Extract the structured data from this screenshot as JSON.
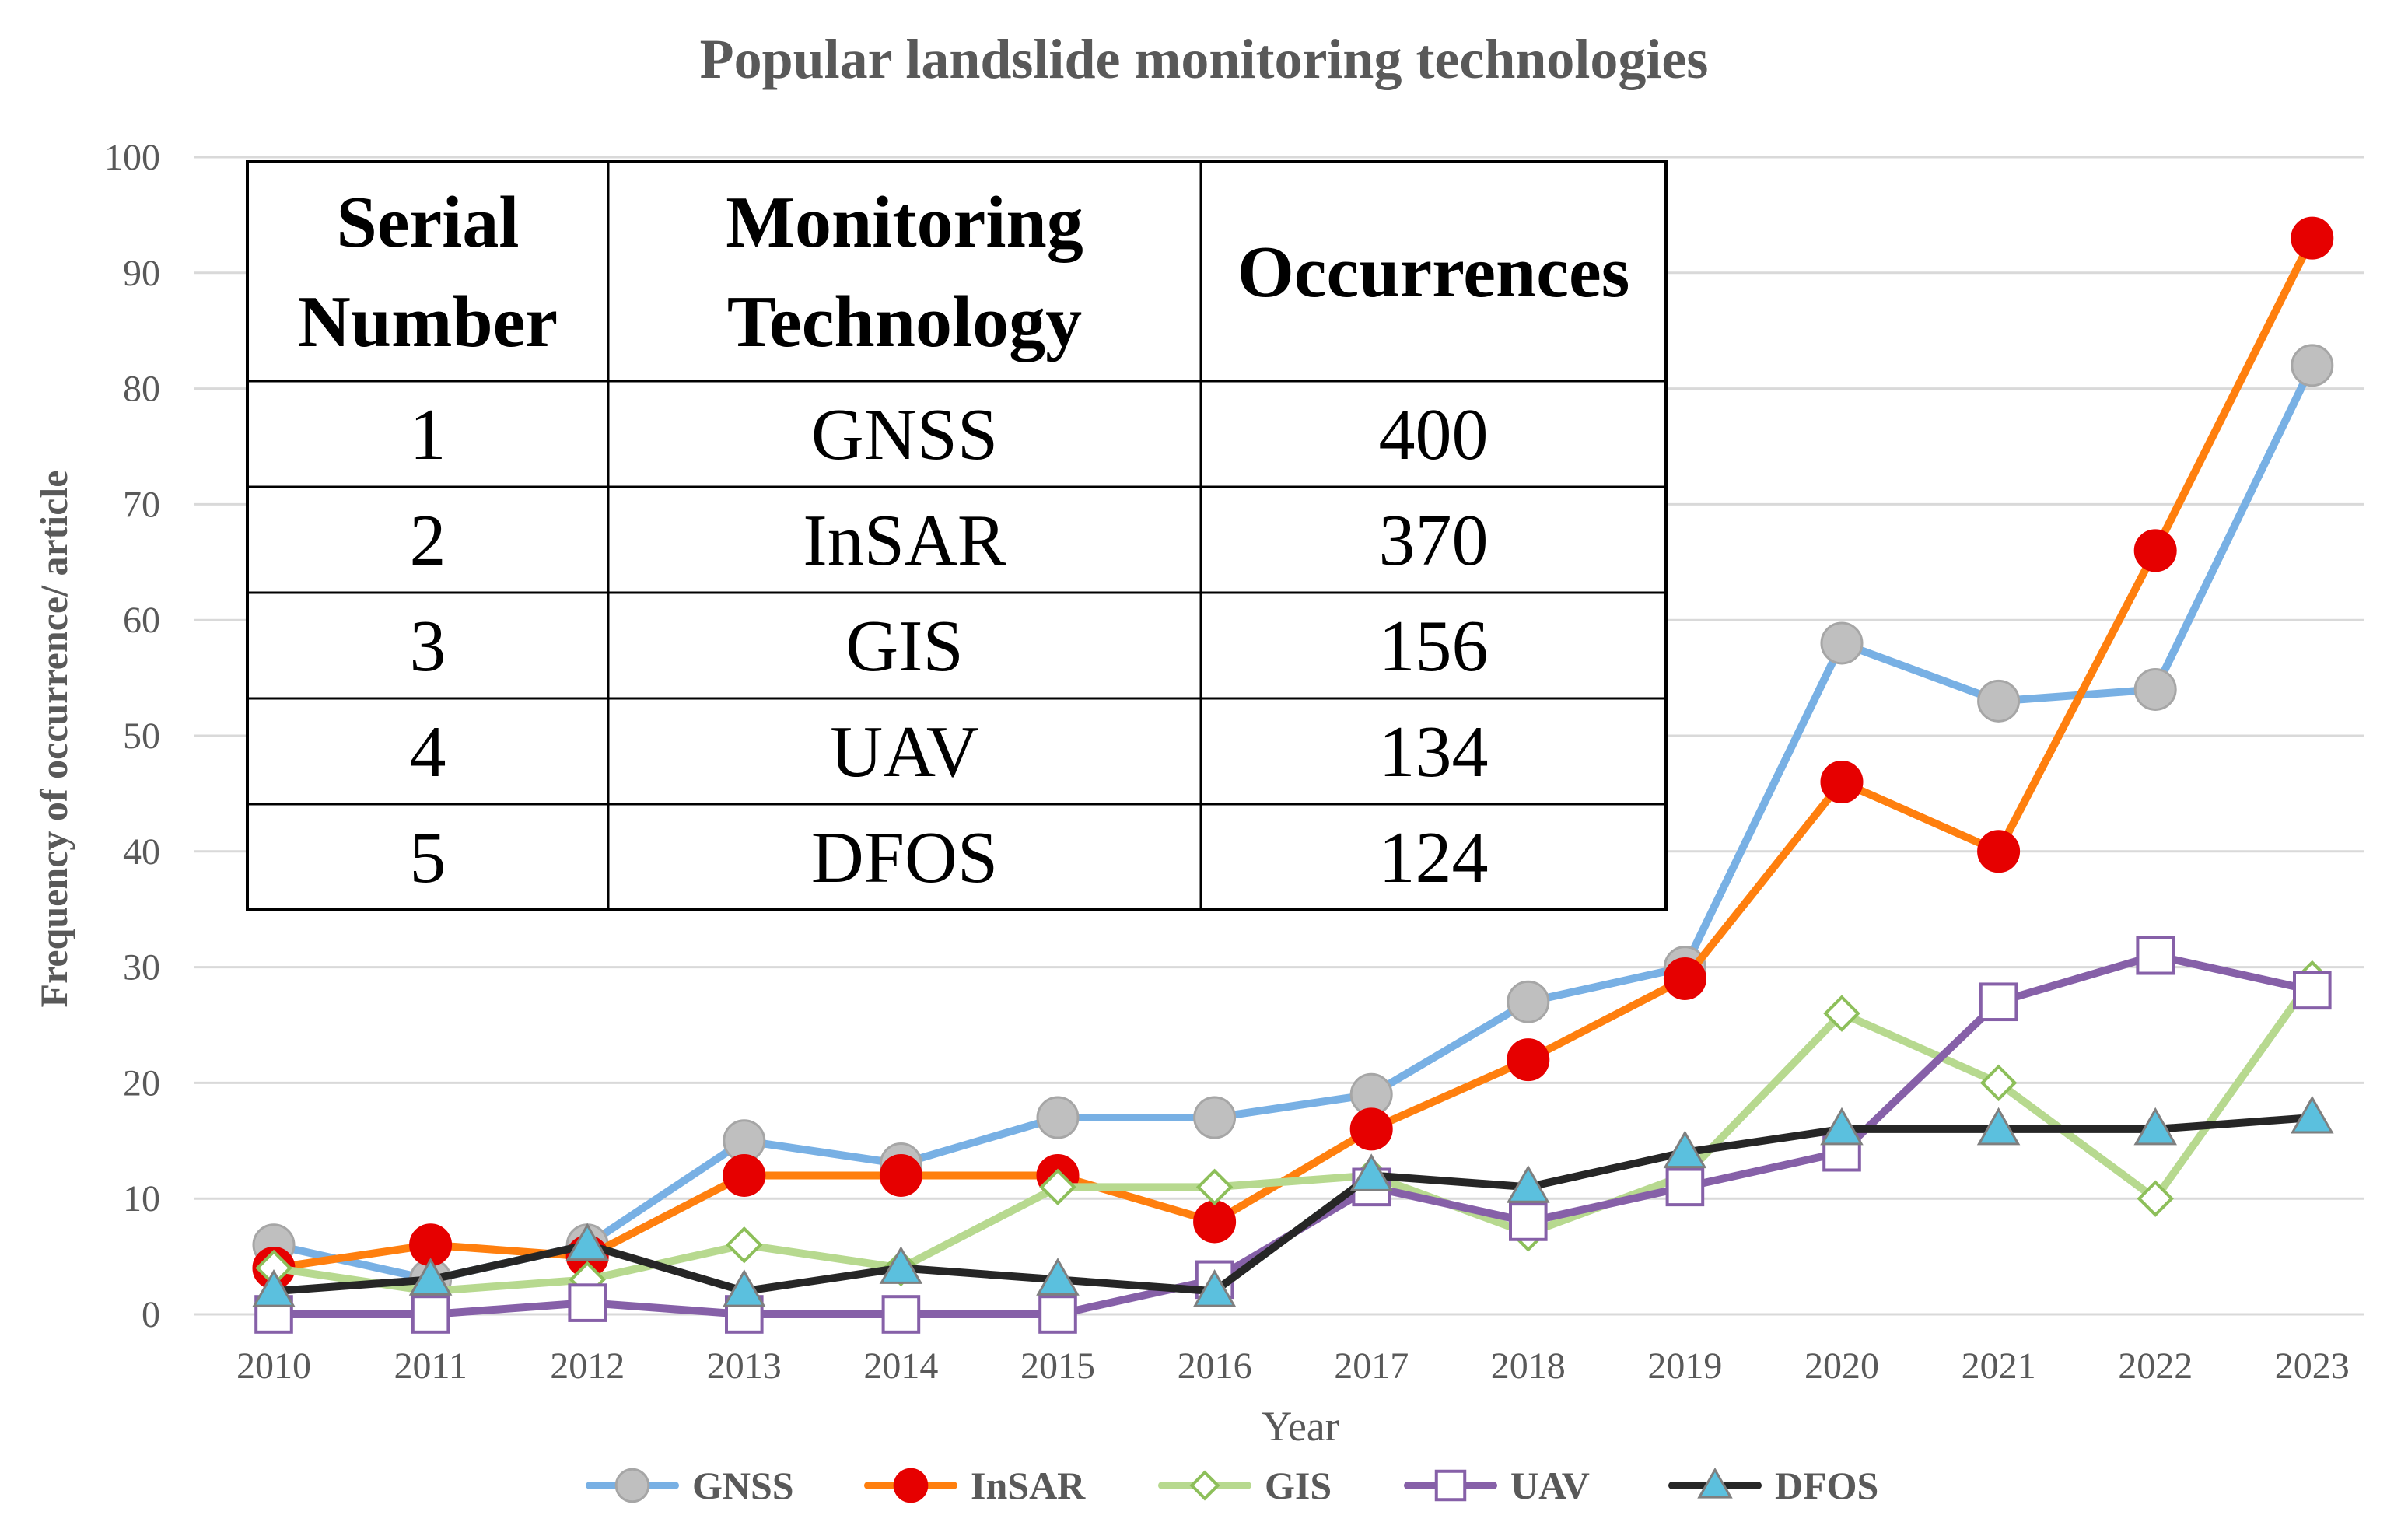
{
  "chart_data": {
    "type": "line",
    "title": "Popular landslide monitoring technologies",
    "xlabel": "Year",
    "ylabel": "Frequency of occurrence/ article",
    "ylim": [
      0,
      100
    ],
    "yticks": [
      "0",
      "10",
      "20",
      "30",
      "40",
      "50",
      "60",
      "70",
      "80",
      "90",
      "100"
    ],
    "x": [
      "2010",
      "2011",
      "2012",
      "2013",
      "2014",
      "2015",
      "2016",
      "2017",
      "2018",
      "2019",
      "2020",
      "2021",
      "2022",
      "2023"
    ],
    "grid": "horizontal",
    "legend": "bottom",
    "series": [
      {
        "name": "GNSS",
        "values": [
          6,
          3,
          6,
          15,
          13,
          17,
          17,
          19,
          27,
          30,
          58,
          53,
          54,
          82
        ],
        "line_color": "#78B0E4",
        "marker": "circle",
        "marker_fill": "#BFBFBF",
        "marker_stroke": "#A6A6A6"
      },
      {
        "name": "InSAR",
        "values": [
          4,
          6,
          5,
          12,
          12,
          12,
          8,
          16,
          22,
          29,
          46,
          40,
          66,
          93
        ],
        "line_color": "#FF7F0E",
        "marker": "circle",
        "marker_fill": "#E60000",
        "marker_stroke": "#E60000"
      },
      {
        "name": "GIS",
        "values": [
          4,
          2,
          3,
          6,
          4,
          11,
          11,
          12,
          7,
          12,
          26,
          20,
          10,
          29
        ],
        "line_color": "#B7D98F",
        "marker": "diamond",
        "marker_fill": "#FFFFFF",
        "marker_stroke": "#8DBF5A"
      },
      {
        "name": "UAV",
        "values": [
          0,
          0,
          1,
          0,
          0,
          0,
          3,
          11,
          8,
          11,
          14,
          27,
          31,
          28
        ],
        "line_color": "#8660A8",
        "marker": "square",
        "marker_fill": "#FFFFFF",
        "marker_stroke": "#8660A8"
      },
      {
        "name": "DFOS",
        "values": [
          2,
          3,
          6,
          2,
          4,
          3,
          2,
          12,
          11,
          14,
          16,
          16,
          16,
          17
        ],
        "line_color": "#262626",
        "marker": "triangle",
        "marker_fill": "#5BC0DE",
        "marker_stroke": "#7F7F7F"
      }
    ],
    "table": {
      "headers": [
        [
          "Serial",
          "Number"
        ],
        [
          "Monitoring",
          "Technology"
        ],
        [
          "Occurrences"
        ]
      ],
      "rows": [
        [
          "1",
          "GNSS",
          "400"
        ],
        [
          "2",
          "InSAR",
          "370"
        ],
        [
          "3",
          "GIS",
          "156"
        ],
        [
          "4",
          "UAV",
          "134"
        ],
        [
          "5",
          "DFOS",
          "124"
        ]
      ]
    }
  }
}
